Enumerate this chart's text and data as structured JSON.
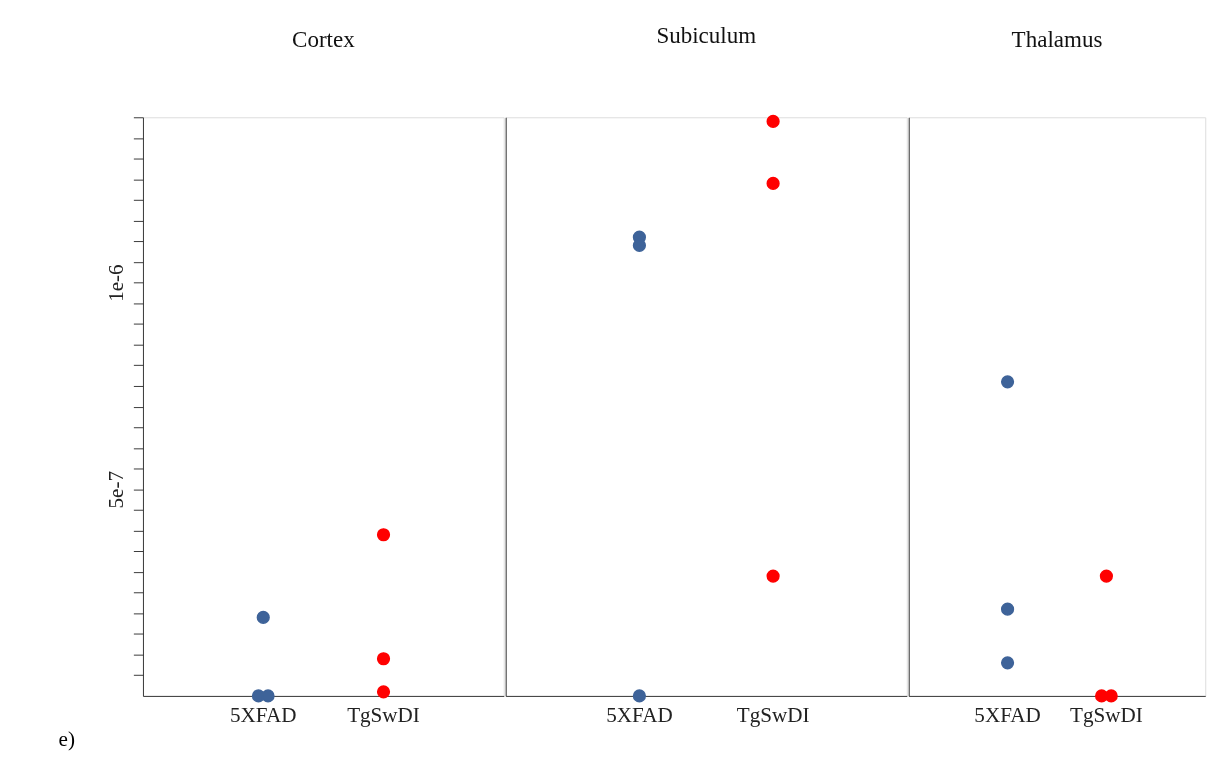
{
  "chart_data": [
    {
      "type": "scatter",
      "title": "Cortex",
      "categories": [
        "5XFAD",
        "TgSwDI"
      ],
      "ylim": [
        0,
        1.4e-06
      ],
      "yticks": [
        {
          "value": 5e-08,
          "label": null
        },
        {
          "value": 1e-07,
          "label": null
        },
        {
          "value": 1.5e-07,
          "label": null
        },
        {
          "value": 2e-07,
          "label": null
        },
        {
          "value": 2.5e-07,
          "label": null
        },
        {
          "value": 3e-07,
          "label": null
        },
        {
          "value": 3.5e-07,
          "label": null
        },
        {
          "value": 4e-07,
          "label": null
        },
        {
          "value": 4.5e-07,
          "label": null
        },
        {
          "value": 5e-07,
          "label": "5e-7"
        },
        {
          "value": 5.5e-07,
          "label": null
        },
        {
          "value": 6e-07,
          "label": null
        },
        {
          "value": 6.5e-07,
          "label": null
        },
        {
          "value": 7e-07,
          "label": null
        },
        {
          "value": 7.5e-07,
          "label": null
        },
        {
          "value": 8e-07,
          "label": null
        },
        {
          "value": 8.5e-07,
          "label": null
        },
        {
          "value": 9e-07,
          "label": null
        },
        {
          "value": 9.5e-07,
          "label": null
        },
        {
          "value": 1e-06,
          "label": "1e-6"
        },
        {
          "value": 1.05e-06,
          "label": null
        },
        {
          "value": 1.1e-06,
          "label": null
        },
        {
          "value": 1.15e-06,
          "label": null
        },
        {
          "value": 1.2e-06,
          "label": null
        },
        {
          "value": 1.25e-06,
          "label": null
        },
        {
          "value": 1.3e-06,
          "label": null
        },
        {
          "value": 1.35e-06,
          "label": null
        },
        {
          "value": 1.4e-06,
          "label": null
        }
      ],
      "series": [
        {
          "color": "#3e6399",
          "x": [
            "5XFAD",
            "5XFAD",
            "5XFAD"
          ],
          "values": [
            1.9e-07,
            0,
            0
          ]
        },
        {
          "color": "#ff0000",
          "x": [
            "TgSwDI",
            "TgSwDI",
            "TgSwDI"
          ],
          "values": [
            3.9e-07,
            9e-08,
            1e-08
          ]
        }
      ],
      "annotations": [
        "e)"
      ]
    },
    {
      "type": "scatter",
      "title": "Subiculum",
      "categories": [
        "5XFAD",
        "TgSwDI"
      ],
      "ylim": [
        0,
        1.4e-06
      ],
      "tick_labels": "x",
      "series": [
        {
          "color": "#3e6399",
          "x": [
            "5XFAD",
            "5XFAD",
            "5XFAD"
          ],
          "values": [
            1.11e-06,
            1.09e-06,
            0
          ]
        },
        {
          "color": "#ff0000",
          "x": [
            "TgSwDI",
            "TgSwDI",
            "TgSwDI"
          ],
          "values": [
            1.39e-06,
            1.24e-06,
            2.9e-07
          ]
        }
      ]
    },
    {
      "type": "scatter",
      "title": "Thalamus",
      "categories": [
        "5XFAD",
        "TgSwDI"
      ],
      "ylim": [
        0,
        1.4e-06
      ],
      "tick_labels": "x",
      "series": [
        {
          "color": "#3e6399",
          "x": [
            "5XFAD",
            "5XFAD",
            "5XFAD"
          ],
          "values": [
            7.6e-07,
            2.1e-07,
            8e-08
          ]
        },
        {
          "color": "#ff0000",
          "x": [
            "TgSwDI",
            "TgSwDI",
            "TgSwDI"
          ],
          "values": [
            2.9e-07,
            0,
            0
          ]
        }
      ]
    }
  ]
}
